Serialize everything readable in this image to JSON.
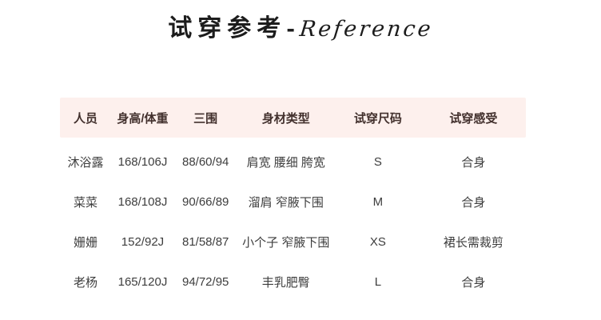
{
  "title": {
    "cjk": "试穿参考",
    "separator": "-",
    "script": "Reference"
  },
  "colors": {
    "header_background": "#fdf0ed",
    "header_text": "#42302d",
    "body_text": "#3d3d3d",
    "title_text": "#1c1c1c",
    "page_background": "#ffffff"
  },
  "table": {
    "headers": [
      "人员",
      "身高/体重",
      "三围",
      "身材类型",
      "试穿尺码",
      "试穿感受"
    ],
    "rows": [
      {
        "cells": [
          "沐浴露",
          "168/106J",
          "88/60/94",
          "肩宽 腰细 胯宽",
          "S",
          "合身"
        ]
      },
      {
        "cells": [
          "菜菜",
          "168/108J",
          "90/66/89",
          "溜肩 窄腋下围",
          "M",
          "合身"
        ]
      },
      {
        "cells": [
          "姗姗",
          "152/92J",
          "81/58/87",
          "小个子 窄腋下围",
          "XS",
          "裙长需裁剪"
        ]
      },
      {
        "cells": [
          "老杨",
          "165/120J",
          "94/72/95",
          "丰乳肥臀",
          "L",
          "合身"
        ]
      }
    ]
  }
}
